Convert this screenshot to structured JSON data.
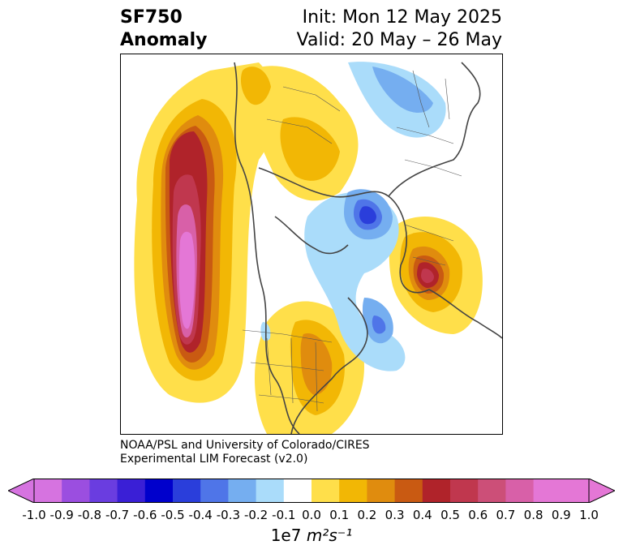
{
  "header": {
    "title_line1": "SF750",
    "title_line2": "Anomaly",
    "init_text": "Init: Mon 12 May 2025",
    "valid_text": "Valid: 20 May – 26 May"
  },
  "credit": {
    "line1": "NOAA/PSL and University of Colorado/CIRES",
    "line2": "Experimental LIM Forecast (v2.0)"
  },
  "colorbar": {
    "ticks": [
      "-1.0",
      "-0.9",
      "-0.8",
      "-0.7",
      "-0.6",
      "-0.5",
      "-0.4",
      "-0.3",
      "-0.2",
      "-0.1",
      "0.0",
      "0.1",
      "0.2",
      "0.3",
      "0.4",
      "0.5",
      "0.6",
      "0.7",
      "0.8",
      "0.9",
      "1.0"
    ],
    "colors": [
      "#d673e0",
      "#9b4ee0",
      "#6a3de0",
      "#3a1fd6",
      "#0000cc",
      "#2a3edb",
      "#4f75e8",
      "#75aef0",
      "#aadcfa",
      "#ffffff",
      "#ffdf4a",
      "#f2b705",
      "#e08c0e",
      "#c95a12",
      "#b0232a",
      "#c0374e",
      "#cc4f78",
      "#d860a8",
      "#e477d6"
    ],
    "under_color": "#d673e0",
    "over_color": "#e477d6",
    "units_prefix": "1e7",
    "units_math": "m²s⁻¹"
  }
}
